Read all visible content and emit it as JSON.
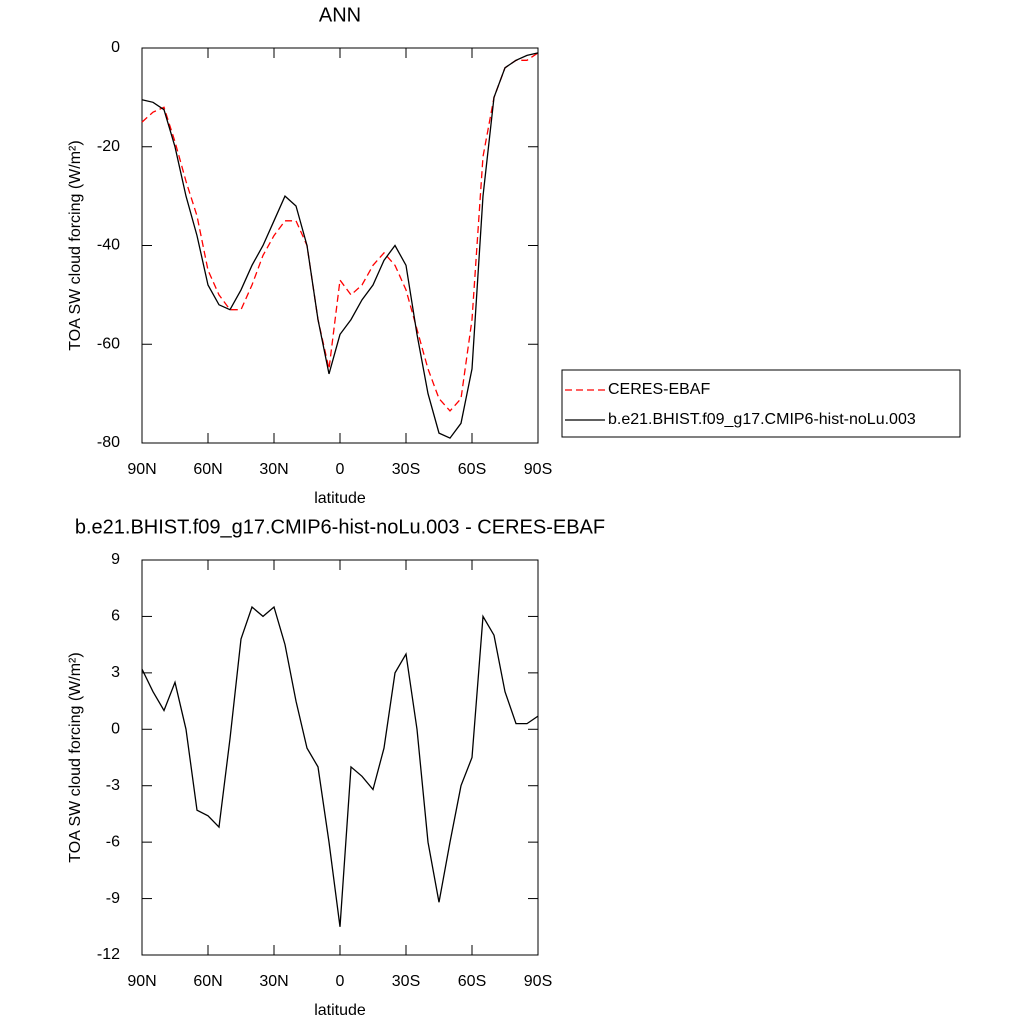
{
  "chart_data": [
    {
      "type": "line",
      "title": "ANN",
      "ylabel": "TOA SW cloud forcing (W/m²)",
      "xlabel": "latitude",
      "x": [
        90,
        85,
        80,
        75,
        70,
        65,
        60,
        55,
        50,
        45,
        40,
        35,
        30,
        25,
        20,
        15,
        10,
        5,
        0,
        -5,
        -10,
        -15,
        -20,
        -25,
        -30,
        -35,
        -40,
        -45,
        -50,
        -55,
        -60,
        -65,
        -70,
        -75,
        -80,
        -85,
        -90
      ],
      "xlim": [
        90,
        -90
      ],
      "xticks": [
        {
          "value": 90,
          "label": "90N"
        },
        {
          "value": 60,
          "label": "60N"
        },
        {
          "value": 30,
          "label": "30N"
        },
        0,
        {
          "value": -30,
          "label": "30S"
        },
        {
          "value": -60,
          "label": "60S"
        },
        {
          "value": -90,
          "label": "90S"
        }
      ],
      "ylim": [
        -80,
        0
      ],
      "yticks": [
        0,
        -20,
        -40,
        -60,
        -80
      ],
      "legend": "right",
      "series": [
        {
          "name": "CERES-EBAF",
          "color": "#ff0000",
          "dash": true,
          "values": [
            -15,
            -13,
            -12,
            -19,
            -27,
            -34,
            -45,
            -50,
            -53,
            -53,
            -48,
            -42,
            -38,
            -35,
            -35,
            -40,
            -55,
            -65,
            -47,
            -50,
            -48,
            -44,
            -41.5,
            -44,
            -49,
            -57,
            -65,
            -71,
            -73.5,
            -71,
            -55,
            -22,
            -10,
            -4,
            -2.5,
            -2.5,
            -1
          ]
        },
        {
          "name": "b.e21.BHIST.f09_g17.CMIP6-hist-noLu.003",
          "color": "#000000",
          "dash": false,
          "values": [
            -10.5,
            -11,
            -12.5,
            -20,
            -30,
            -38,
            -48,
            -52,
            -53,
            -49,
            -44,
            -40,
            -35,
            -30,
            -32,
            -40,
            -55,
            -66,
            -58,
            -55,
            -51,
            -48,
            -43,
            -40,
            -44,
            -58,
            -70,
            -78,
            -79,
            -76,
            -65,
            -30,
            -10,
            -4,
            -2.5,
            -1.5,
            -1
          ]
        }
      ]
    },
    {
      "type": "line",
      "title": "b.e21.BHIST.f09_g17.CMIP6-hist-noLu.003 - CERES-EBAF",
      "ylabel": "TOA SW cloud forcing (W/m²)",
      "xlabel": "latitude",
      "x": [
        90,
        85,
        80,
        75,
        70,
        65,
        60,
        55,
        50,
        45,
        40,
        35,
        30,
        25,
        20,
        15,
        10,
        5,
        0,
        -5,
        -10,
        -15,
        -20,
        -25,
        -30,
        -35,
        -40,
        -45,
        -50,
        -55,
        -60,
        -65,
        -70,
        -75,
        -80,
        -85,
        -90
      ],
      "xlim": [
        90,
        -90
      ],
      "xticks": [
        {
          "value": 90,
          "label": "90N"
        },
        {
          "value": 60,
          "label": "60N"
        },
        {
          "value": 30,
          "label": "30N"
        },
        0,
        {
          "value": -30,
          "label": "30S"
        },
        {
          "value": -60,
          "label": "60S"
        },
        {
          "value": -90,
          "label": "90S"
        }
      ],
      "ylim": [
        -12,
        9
      ],
      "yticks": [
        9,
        6,
        3,
        0,
        -3,
        -6,
        -9,
        -12
      ],
      "series": [
        {
          "color": "#000000",
          "dash": false,
          "values": [
            3.2,
            2,
            1,
            2.5,
            0,
            -4.3,
            -4.6,
            -5.2,
            -0.5,
            4.8,
            6.5,
            6,
            6.5,
            4.5,
            1.5,
            -1,
            -2,
            -6,
            -10.5,
            -2,
            -2.5,
            -3.2,
            -1,
            3,
            4,
            0,
            -6,
            -9.2,
            -6,
            -3,
            -1.5,
            6,
            5,
            2,
            0.3,
            0.3,
            0.7
          ]
        }
      ]
    }
  ]
}
